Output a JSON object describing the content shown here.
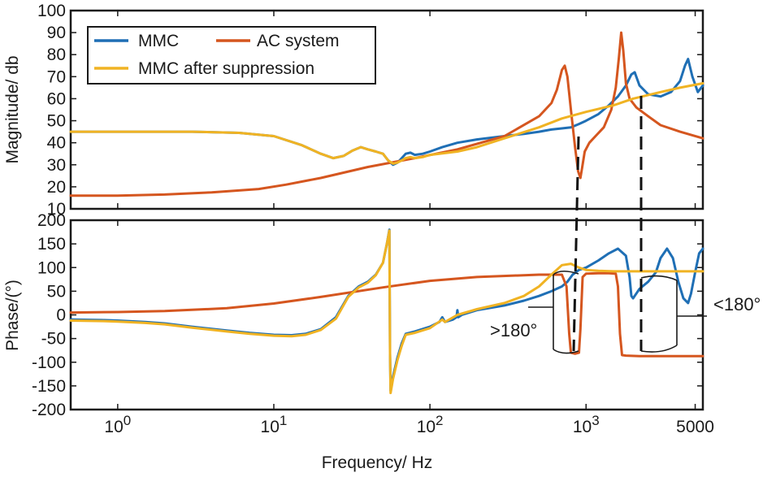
{
  "chart_data": [
    {
      "type": "line",
      "panel": "magnitude",
      "ylabel": "Magnitude/  db",
      "x_scale": "log",
      "xlim": [
        0.5,
        5600
      ],
      "ylim": [
        10,
        100
      ],
      "yticks": [
        10,
        20,
        30,
        40,
        50,
        60,
        70,
        80,
        90,
        100
      ],
      "ytick_labels": [
        "10",
        "20",
        "30",
        "40",
        "50",
        "60",
        "70",
        "80",
        "90",
        "100"
      ],
      "legend": {
        "placement": "top-left",
        "entries": [
          {
            "label": "MMC",
            "color": "#1f6fb5"
          },
          {
            "label": "AC system",
            "color": "#d5561f"
          },
          {
            "label": "MMC after suppression",
            "color": "#f0b323"
          }
        ]
      },
      "series": [
        {
          "name": "MMC",
          "color": "#1f6fb5",
          "x": [
            0.5,
            1,
            3,
            6,
            10,
            15,
            20,
            24,
            28,
            32,
            36,
            40,
            45,
            50,
            54,
            58,
            62,
            66,
            70,
            75,
            80,
            90,
            100,
            120,
            150,
            200,
            300,
            400,
            500,
            600,
            700,
            800,
            900,
            1000,
            1200,
            1400,
            1600,
            1800,
            1950,
            2050,
            2200,
            2500,
            3000,
            3500,
            4000,
            4300,
            4500,
            4800,
            5200,
            5600
          ],
          "y": [
            45,
            45,
            45,
            44.5,
            43,
            39,
            35,
            33,
            34,
            36.5,
            38,
            37,
            36,
            35,
            32,
            30,
            31,
            33,
            35,
            35.5,
            34.5,
            35,
            36,
            38,
            40,
            41.5,
            43,
            44,
            45,
            46,
            46.5,
            47,
            48.5,
            50,
            53,
            57,
            61,
            66,
            71,
            72,
            66,
            62,
            61,
            63,
            68,
            75,
            78,
            70,
            63,
            66
          ]
        },
        {
          "name": "AC system",
          "color": "#d5561f",
          "x": [
            0.5,
            1,
            2,
            4,
            8,
            12,
            20,
            40,
            80,
            150,
            300,
            500,
            600,
            650,
            700,
            730,
            760,
            800,
            850,
            890,
            920,
            950,
            980,
            1050,
            1150,
            1300,
            1450,
            1550,
            1620,
            1680,
            1730,
            1800,
            1900,
            2100,
            2500,
            3000,
            4000,
            5600
          ],
          "y": [
            16,
            16,
            16.5,
            17.5,
            19,
            21,
            24,
            29,
            33,
            37,
            43,
            52,
            58,
            64,
            73,
            75,
            70,
            55,
            38,
            27,
            24,
            30,
            36,
            40,
            43,
            47,
            55,
            65,
            78,
            90,
            82,
            67,
            60,
            56,
            52,
            48,
            45,
            42
          ]
        },
        {
          "name": "MMC after suppression",
          "color": "#f0b323",
          "x": [
            0.5,
            1,
            3,
            6,
            10,
            15,
            20,
            24,
            28,
            32,
            36,
            40,
            45,
            50,
            54,
            58,
            62,
            66,
            70,
            75,
            80,
            90,
            100,
            150,
            200,
            300,
            500,
            700,
            1000,
            1500,
            2000,
            3000,
            4000,
            5600
          ],
          "y": [
            45,
            45,
            45,
            44.5,
            43,
            39,
            35,
            33,
            34,
            36.5,
            38,
            37,
            36,
            35,
            32,
            30.5,
            31,
            32,
            33,
            33.5,
            33,
            33.5,
            34.5,
            36,
            38,
            42,
            47,
            51,
            54,
            57,
            60,
            63,
            65,
            67
          ]
        }
      ]
    },
    {
      "type": "line",
      "panel": "phase",
      "xlabel": "Frequency/  Hz",
      "ylabel": "Phase/(°)",
      "x_scale": "log",
      "xlim": [
        0.5,
        5600
      ],
      "ylim": [
        -200,
        200
      ],
      "yticks": [
        -200,
        -150,
        -100,
        -50,
        0,
        50,
        100,
        150,
        200
      ],
      "ytick_labels": [
        "-200",
        "-150",
        "-100",
        "-50",
        "0",
        "50",
        "100",
        "150",
        "200"
      ],
      "xticks": [
        1,
        10,
        100,
        1000,
        5000
      ],
      "xtick_bases": [
        "10",
        "10",
        "10",
        "10",
        "5000"
      ],
      "xtick_exponents": [
        "0",
        "1",
        "2",
        "3",
        ""
      ],
      "annotations": [
        ">180°",
        "<180°"
      ],
      "series": [
        {
          "name": "MMC",
          "color": "#1f6fb5",
          "x": [
            0.5,
            0.8,
            1,
            1.5,
            2,
            3,
            5,
            7,
            10,
            13,
            16,
            20,
            25,
            30,
            35,
            40,
            45,
            50,
            53,
            55,
            55.5,
            56,
            58,
            62,
            66,
            70,
            80,
            100,
            115,
            120,
            125,
            140,
            148,
            150,
            152,
            160,
            200,
            300,
            400,
            500,
            600,
            700,
            760,
            820,
            900,
            1000,
            1200,
            1400,
            1600,
            1800,
            1900,
            1950,
            2000,
            2050,
            2200,
            2500,
            2800,
            3000,
            3300,
            3600,
            3900,
            4200,
            4500,
            4700,
            5000,
            5300,
            5600
          ],
          "y": [
            -10,
            -11,
            -12,
            -15,
            -18,
            -25,
            -33,
            -38,
            -42,
            -43,
            -40,
            -30,
            -5,
            40,
            60,
            70,
            85,
            110,
            150,
            180,
            -80,
            -160,
            -130,
            -90,
            -60,
            -40,
            -35,
            -25,
            -15,
            -5,
            -15,
            -10,
            -5,
            10,
            -5,
            0,
            10,
            20,
            30,
            40,
            50,
            60,
            70,
            85,
            95,
            100,
            115,
            130,
            140,
            125,
            80,
            40,
            35,
            40,
            55,
            70,
            90,
            120,
            140,
            120,
            70,
            35,
            25,
            45,
            90,
            130,
            140
          ]
        },
        {
          "name": "AC system",
          "color": "#d5561f",
          "x": [
            0.5,
            1,
            2,
            5,
            10,
            20,
            50,
            100,
            200,
            500,
            700,
            750,
            780,
            800,
            850,
            900,
            920,
            950,
            1000,
            1200,
            1400,
            1550,
            1600,
            1650,
            1700,
            1800,
            2200,
            3000,
            4000,
            5600
          ],
          "y": [
            5,
            6,
            8,
            14,
            24,
            38,
            58,
            72,
            80,
            85,
            85,
            60,
            -40,
            -80,
            -82,
            -80,
            -30,
            80,
            87,
            88,
            88,
            87,
            60,
            -40,
            -85,
            -86,
            -87,
            -87,
            -87,
            -87
          ]
        },
        {
          "name": "MMC after suppression",
          "color": "#f0b323",
          "x": [
            0.5,
            0.8,
            1,
            1.5,
            2,
            3,
            5,
            7,
            10,
            13,
            16,
            20,
            25,
            30,
            35,
            40,
            45,
            50,
            53,
            55,
            55.5,
            56,
            58,
            62,
            66,
            70,
            80,
            100,
            120,
            125,
            150,
            200,
            300,
            400,
            500,
            600,
            700,
            800,
            900,
            1000,
            1200,
            1500,
            2000,
            3000,
            4000,
            5000,
            5600
          ],
          "y": [
            -12,
            -13,
            -14,
            -17,
            -20,
            -27,
            -35,
            -40,
            -44,
            -45,
            -42,
            -32,
            -8,
            38,
            58,
            68,
            84,
            110,
            150,
            178,
            -80,
            -165,
            -135,
            -95,
            -65,
            -42,
            -38,
            -28,
            -10,
            -15,
            0,
            12,
            25,
            40,
            60,
            85,
            105,
            108,
            100,
            95,
            93,
            92,
            92,
            92,
            92,
            92,
            92
          ]
        }
      ]
    }
  ]
}
